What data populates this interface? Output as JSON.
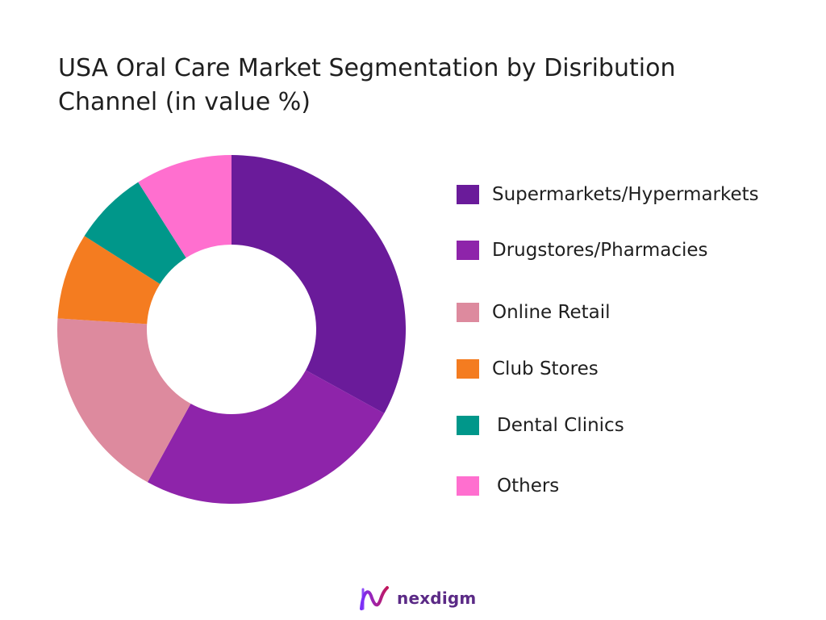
{
  "chart_data": {
    "type": "pie",
    "donut": true,
    "title_lines": [
      "USA Oral Care Market Segmentation by Disribution",
      "Channel (in value %)"
    ],
    "categories": [
      "Supermarkets/Hypermarkets",
      "Drugstores/Pharmacies",
      "Online Retail",
      "Club Stores",
      "Dental Clinics",
      "Others"
    ],
    "values": [
      33,
      25,
      18,
      8,
      7,
      9
    ],
    "colors": [
      "#6a1b9a",
      "#8e24aa",
      "#dd8a9e",
      "#f47c20",
      "#00978a",
      "#ff6fcf"
    ],
    "legend_position": "right"
  },
  "brand": {
    "name": "nexdigm",
    "logo_icon": "nexdigm-logo-icon"
  }
}
